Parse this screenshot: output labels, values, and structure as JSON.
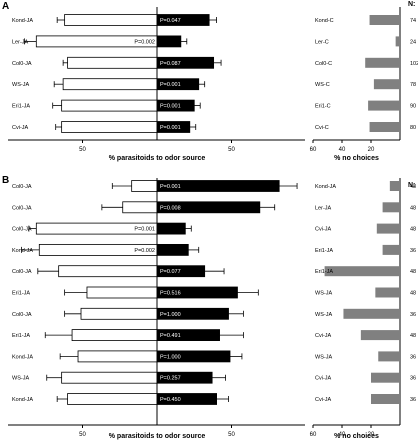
{
  "chart_data": [
    {
      "panel": "A",
      "type": "bar",
      "subtype": "diverging-horizontal",
      "xlabel": "% parasitoids to odor source",
      "xticks": [
        50,
        50
      ],
      "xlim": [
        -100,
        100
      ],
      "legend": "none",
      "grid": false,
      "categories": [
        "Kond-JA",
        "Ler-JA",
        "Col0-JA",
        "WS-JA",
        "Eri1-JA",
        "Cvi-JA"
      ],
      "series": [
        {
          "side": "left",
          "color": "#ffffff",
          "values": [
            -62,
            -81,
            -60,
            -63,
            -64,
            -64
          ],
          "errors": [
            5,
            8,
            3,
            6,
            6,
            4
          ]
        },
        {
          "side": "right",
          "color": "#000000",
          "values": [
            35,
            16,
            38,
            28,
            25,
            22
          ],
          "errors": [
            5,
            4,
            5,
            4,
            4,
            4
          ]
        }
      ],
      "pvalues": [
        "P=0.047",
        "P=0.002",
        "P=0.087",
        "P=0.001",
        "P=0.001",
        "P=0.001"
      ]
    },
    {
      "panel": "A",
      "type": "bar",
      "subtype": "horizontal",
      "xlabel": "% no choices",
      "xticks": [
        60,
        40,
        20
      ],
      "xlim": [
        0,
        60
      ],
      "legend": "none",
      "grid": false,
      "color": "#808080",
      "categories": [
        "Kond-C",
        "Ler-C",
        "Col0-C",
        "WS-C",
        "Eri1-C",
        "Cvi-C"
      ],
      "values": [
        21,
        3,
        24,
        18,
        22,
        21
      ],
      "n_header": "N:",
      "n": [
        "74",
        "24",
        "102",
        "78",
        "90",
        "80"
      ]
    },
    {
      "panel": "B",
      "type": "bar",
      "subtype": "diverging-horizontal",
      "xlabel": "% parasitoids to odor source",
      "xticks": [
        50,
        50
      ],
      "xlim": [
        -100,
        100
      ],
      "legend": "none",
      "grid": false,
      "categories": [
        "Col0-JA",
        "Col0-JA",
        "Col0-JA",
        "Kond-JA",
        "Col0-JA",
        "Eri1-JA",
        "Col0-JA",
        "Eri1-JA",
        "Kond-JA",
        "WS-JA",
        "Kond-JA"
      ],
      "series": [
        {
          "side": "left",
          "color": "#ffffff",
          "values": [
            -17,
            -23,
            -81,
            -79,
            -66,
            -47,
            -51,
            -57,
            -53,
            -64,
            -60
          ],
          "errors": [
            13,
            14,
            5,
            12,
            14,
            15,
            11,
            18,
            12,
            10,
            7
          ]
        },
        {
          "side": "right",
          "color": "#000000",
          "values": [
            82,
            69,
            19,
            21,
            32,
            54,
            48,
            42,
            49,
            37,
            40
          ],
          "errors": [
            12,
            10,
            4,
            7,
            13,
            14,
            10,
            16,
            8,
            9,
            8
          ]
        }
      ],
      "pvalues": [
        "P=0.001",
        "P=0.008",
        "P=0.001",
        "P=0.002",
        "P=0.077",
        "P=0.516",
        "P=1.000",
        "P=0.491",
        "P=1.000",
        "P=0.257",
        "P=0.450"
      ]
    },
    {
      "panel": "B",
      "type": "bar",
      "subtype": "horizontal",
      "xlabel": "% no choices",
      "xticks": [
        60,
        40,
        20
      ],
      "xlim": [
        0,
        60
      ],
      "legend": "none",
      "grid": false,
      "color": "#808080",
      "categories": [
        "Kond-JA",
        "Ler-JA",
        "Cvi-JA",
        "Eri1-JA",
        "Eri1-JA",
        "WS-JA",
        "WS-JA",
        "Cvi-JA",
        "WS-JA",
        "Cvi-JA",
        "Cvi-JA"
      ],
      "values": [
        7,
        12,
        16,
        12,
        52,
        17,
        39,
        27,
        15,
        20,
        20
      ],
      "n_header": "N:",
      "n": [
        "48",
        "48",
        "48",
        "36",
        "48",
        "48",
        "36",
        "48",
        "36",
        "36",
        "36"
      ]
    }
  ],
  "panel_labels": [
    "A",
    "B"
  ]
}
